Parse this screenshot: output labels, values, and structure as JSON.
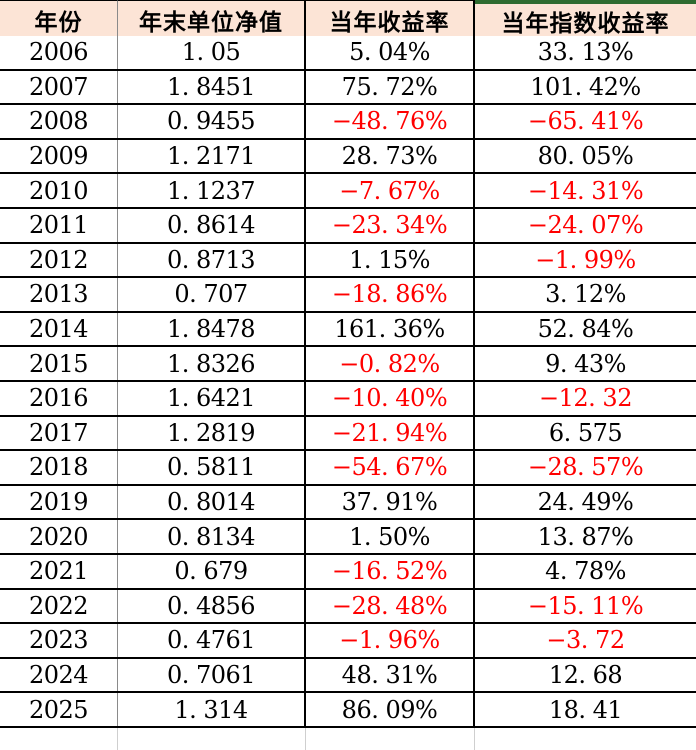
{
  "chart_data": {
    "type": "table",
    "columns": [
      "年份",
      "年末单位净值",
      "当年收益率",
      "当年指数收益率"
    ],
    "negative_prefix": "−",
    "rows": [
      [
        "2006",
        "1. 05",
        "5. 04%",
        "33. 13%"
      ],
      [
        "2007",
        "1. 8451",
        "75. 72%",
        "101. 42%"
      ],
      [
        "2008",
        "0. 9455",
        "−48. 76%",
        "−65. 41%"
      ],
      [
        "2009",
        "1. 2171",
        "28. 73%",
        "80. 05%"
      ],
      [
        "2010",
        "1. 1237",
        "−7. 67%",
        "−14. 31%"
      ],
      [
        "2011",
        "0. 8614",
        "−23. 34%",
        "−24. 07%"
      ],
      [
        "2012",
        "0. 8713",
        "1. 15%",
        "−1. 99%"
      ],
      [
        "2013",
        "0. 707",
        "−18. 86%",
        "3. 12%"
      ],
      [
        "2014",
        "1. 8478",
        "161. 36%",
        "52. 84%"
      ],
      [
        "2015",
        "1. 8326",
        "−0. 82%",
        "9. 43%"
      ],
      [
        "2016",
        "1. 6421",
        "−10. 40%",
        "−12. 32"
      ],
      [
        "2017",
        "1. 2819",
        "−21. 94%",
        "6. 575"
      ],
      [
        "2018",
        "0. 5811",
        "−54. 67%",
        "−28. 57%"
      ],
      [
        "2019",
        "0. 8014",
        "37. 91%",
        "24. 49%"
      ],
      [
        "2020",
        "0. 8134",
        "1. 50%",
        "13. 87%"
      ],
      [
        "2021",
        "0. 679",
        "−16. 52%",
        "4. 78%"
      ],
      [
        "2022",
        "0. 4856",
        "−28. 48%",
        "−15. 11%"
      ],
      [
        "2023",
        "0. 4761",
        "−1. 96%",
        "−3. 72"
      ],
      [
        "2024",
        "0. 7061",
        "48. 31%",
        "12. 68"
      ],
      [
        "2025",
        "1. 314",
        "86. 09%",
        "18. 41"
      ]
    ]
  },
  "colors": {
    "header_bg": "#FCE4D6",
    "negative_text": "#FF0000",
    "positive_text": "#000000",
    "green_accent_line": "#2E6B30",
    "border_black": "#000000",
    "gridline_gray": "#8A8A8A",
    "faint_gridline": "#CFCFCF"
  }
}
